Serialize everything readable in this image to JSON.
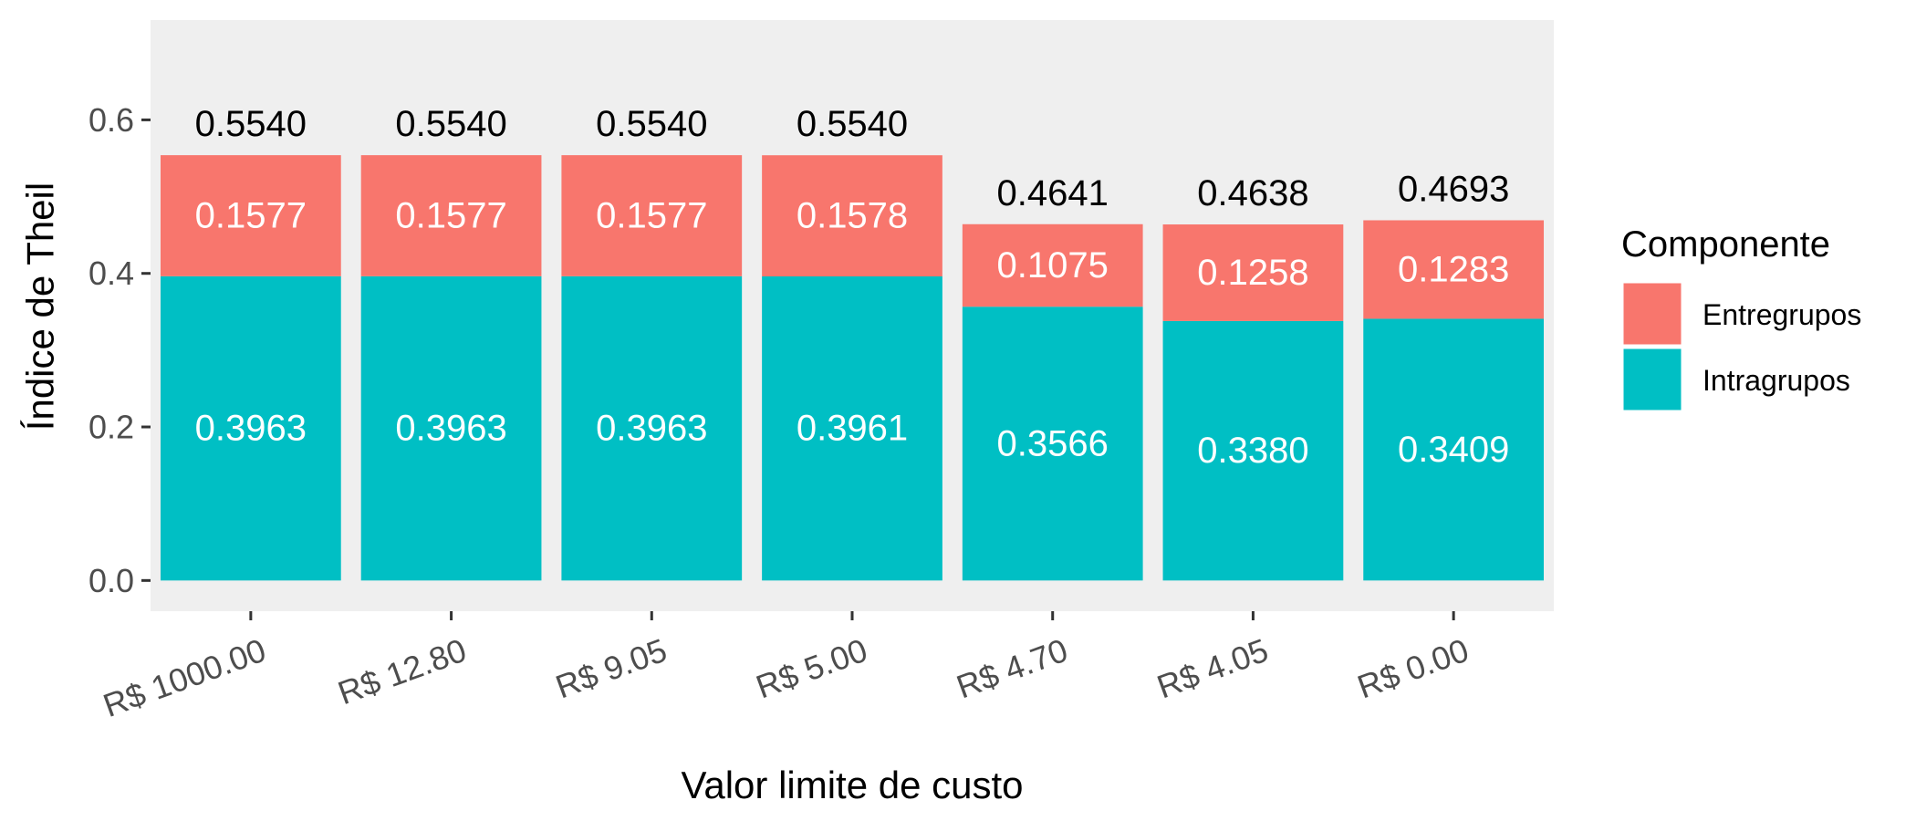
{
  "chart_data": {
    "type": "bar",
    "stacked": true,
    "title": "",
    "xlabel": "Valor limite de custo",
    "ylabel": "Índice de Theil",
    "categories": [
      "R$ 1000.00",
      "R$ 12.80",
      "R$ 9.05",
      "R$ 5.00",
      "R$ 4.70",
      "R$ 4.05",
      "R$ 0.00"
    ],
    "series": [
      {
        "name": "Intragrupos",
        "color": "#00BFC4",
        "values": [
          0.3963,
          0.3963,
          0.3963,
          0.3961,
          0.3566,
          0.338,
          0.3409
        ],
        "labels": [
          "0.3963",
          "0.3963",
          "0.3963",
          "0.3961",
          "0.3566",
          "0.3380",
          "0.3409"
        ]
      },
      {
        "name": "Entregrupos",
        "color": "#F8766D",
        "values": [
          0.1577,
          0.1577,
          0.1577,
          0.1578,
          0.1075,
          0.1258,
          0.1283
        ],
        "labels": [
          "0.1577",
          "0.1577",
          "0.1577",
          "0.1578",
          "0.1075",
          "0.1258",
          "0.1283"
        ]
      }
    ],
    "totals": [
      0.554,
      0.554,
      0.554,
      0.554,
      0.4641,
      0.4638,
      0.4693
    ],
    "total_labels": [
      "0.5540",
      "0.5540",
      "0.5540",
      "0.5540",
      "0.4641",
      "0.4638",
      "0.4693"
    ],
    "ylim": [
      -0.04,
      0.73
    ],
    "yticks": [
      0.0,
      0.2,
      0.4,
      0.6
    ],
    "ytick_labels": [
      "0.0",
      "0.2",
      "0.4",
      "0.6"
    ],
    "grid": false,
    "panel_background": "#EFEFEF",
    "legend": {
      "title": "Componente",
      "placement": "right",
      "entries": [
        {
          "label": "Entregrupos",
          "color": "#F8766D"
        },
        {
          "label": "Intragrupos",
          "color": "#00BFC4"
        }
      ]
    }
  }
}
